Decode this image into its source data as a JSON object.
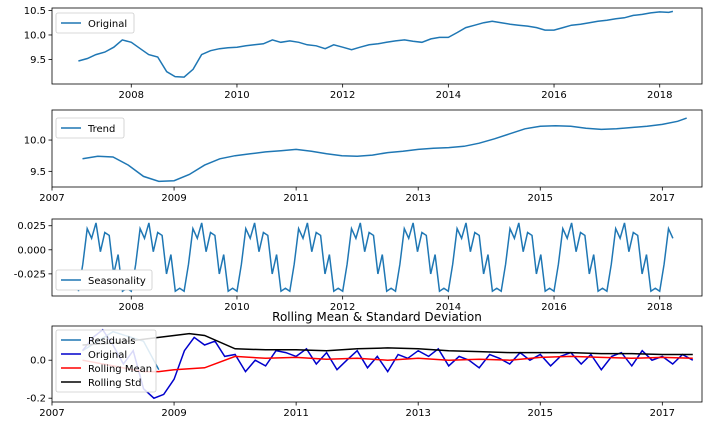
{
  "chart_data": [
    {
      "type": "line",
      "xlim": [
        2006.5,
        2018.8
      ],
      "ylim": [
        9.0,
        10.55
      ],
      "xticks": [
        2008,
        2010,
        2012,
        2014,
        2016,
        2018
      ],
      "xtick_labels": [
        "2008",
        "2010",
        "2012",
        "2014",
        "2016",
        "2018"
      ],
      "yticks": [
        9.5,
        10.0,
        10.5
      ],
      "ytick_labels": [
        "9.5",
        "10.0",
        "10.5"
      ],
      "legend": "upper-left",
      "series": [
        {
          "name": "Original",
          "color": "#1f77b4",
          "x": [
            2007.0,
            2007.17,
            2007.33,
            2007.5,
            2007.67,
            2007.83,
            2008.0,
            2008.17,
            2008.33,
            2008.5,
            2008.67,
            2008.83,
            2009.0,
            2009.17,
            2009.33,
            2009.5,
            2009.67,
            2009.83,
            2010.0,
            2010.17,
            2010.33,
            2010.5,
            2010.67,
            2010.83,
            2011.0,
            2011.17,
            2011.33,
            2011.5,
            2011.67,
            2011.83,
            2012.0,
            2012.17,
            2012.33,
            2012.5,
            2012.67,
            2012.83,
            2013.0,
            2013.17,
            2013.33,
            2013.5,
            2013.67,
            2013.83,
            2014.0,
            2014.17,
            2014.33,
            2014.5,
            2014.67,
            2014.83,
            2015.0,
            2015.17,
            2015.33,
            2015.5,
            2015.67,
            2015.83,
            2016.0,
            2016.17,
            2016.33,
            2016.5,
            2016.67,
            2016.83,
            2017.0,
            2017.17,
            2017.33,
            2017.5,
            2017.67,
            2017.83,
            2018.0,
            2018.17,
            2018.25
          ],
          "y": [
            9.47,
            9.52,
            9.6,
            9.65,
            9.75,
            9.9,
            9.85,
            9.72,
            9.6,
            9.55,
            9.25,
            9.15,
            9.14,
            9.3,
            9.6,
            9.68,
            9.72,
            9.74,
            9.75,
            9.78,
            9.8,
            9.82,
            9.9,
            9.85,
            9.88,
            9.85,
            9.8,
            9.78,
            9.72,
            9.8,
            9.75,
            9.7,
            9.75,
            9.8,
            9.82,
            9.85,
            9.88,
            9.9,
            9.87,
            9.85,
            9.92,
            9.95,
            9.95,
            10.05,
            10.15,
            10.2,
            10.25,
            10.28,
            10.25,
            10.22,
            10.2,
            10.18,
            10.15,
            10.1,
            10.1,
            10.15,
            10.2,
            10.22,
            10.25,
            10.28,
            10.3,
            10.33,
            10.35,
            10.4,
            10.42,
            10.45,
            10.47,
            10.46,
            10.48
          ]
        }
      ]
    },
    {
      "type": "line",
      "xlim": [
        2007.0,
        2017.65
      ],
      "ylim": [
        9.25,
        10.48
      ],
      "xticks": [
        2007,
        2009,
        2011,
        2013,
        2015,
        2017
      ],
      "xtick_labels": [
        "2007",
        "2009",
        "2011",
        "2013",
        "2015",
        "2017"
      ],
      "yticks": [
        9.5,
        10.0
      ],
      "ytick_labels": [
        "9.5",
        "10.0"
      ],
      "legend": "upper-left",
      "series": [
        {
          "name": "Trend",
          "color": "#1f77b4",
          "x": [
            2007.5,
            2007.75,
            2008.0,
            2008.25,
            2008.5,
            2008.75,
            2009.0,
            2009.25,
            2009.5,
            2009.75,
            2010.0,
            2010.25,
            2010.5,
            2010.75,
            2011.0,
            2011.25,
            2011.5,
            2011.75,
            2012.0,
            2012.25,
            2012.5,
            2012.75,
            2013.0,
            2013.25,
            2013.5,
            2013.75,
            2014.0,
            2014.25,
            2014.5,
            2014.75,
            2015.0,
            2015.25,
            2015.5,
            2015.75,
            2016.0,
            2016.25,
            2016.5,
            2016.75,
            2017.0,
            2017.25,
            2017.4
          ],
          "y": [
            9.7,
            9.74,
            9.73,
            9.6,
            9.42,
            9.34,
            9.35,
            9.45,
            9.6,
            9.7,
            9.75,
            9.78,
            9.81,
            9.83,
            9.85,
            9.82,
            9.78,
            9.75,
            9.74,
            9.76,
            9.8,
            9.82,
            9.85,
            9.87,
            9.88,
            9.9,
            9.95,
            10.02,
            10.1,
            10.18,
            10.22,
            10.23,
            10.22,
            10.19,
            10.17,
            10.18,
            10.2,
            10.22,
            10.25,
            10.3,
            10.35
          ]
        }
      ]
    },
    {
      "type": "line",
      "xlim": [
        2006.5,
        2018.8
      ],
      "ylim": [
        -0.048,
        0.032
      ],
      "xticks": [
        2008,
        2010,
        2012,
        2014,
        2016,
        2018
      ],
      "xtick_labels": [
        "2008",
        "2010",
        "2012",
        "2014",
        "2016",
        "2018"
      ],
      "yticks": [
        0.025,
        0.0,
        -0.025
      ],
      "ytick_labels": [
        "0.025",
        "0.000",
        "-0.025"
      ],
      "legend": "lower-left",
      "cycle_values": [
        -0.043,
        -0.015,
        0.022,
        0.012,
        0.028,
        -0.002,
        0.018,
        0.015,
        -0.025,
        -0.005,
        -0.043,
        -0.04
      ],
      "cycle_start": 2007.0,
      "cycle_end": 2018.25,
      "series": [
        {
          "name": "Seasonality",
          "color": "#1f77b4"
        }
      ]
    },
    {
      "type": "line",
      "title": "Rolling Mean & Standard Deviation",
      "xlim": [
        2007.0,
        2017.65
      ],
      "ylim": [
        -0.22,
        0.18
      ],
      "xticks": [
        2007,
        2009,
        2011,
        2013,
        2015,
        2017
      ],
      "xtick_labels": [
        "2007",
        "2009",
        "2011",
        "2013",
        "2015",
        "2017"
      ],
      "yticks": [
        0.0,
        -0.2
      ],
      "ytick_labels": [
        "0.0",
        "-0.2"
      ],
      "legend": "upper-left",
      "series": [
        {
          "name": "Residuals",
          "color": "#1f77b4",
          "x": [
            2007.5,
            2008.0,
            2008.5,
            2008.75
          ],
          "y": [
            0.05,
            0.15,
            0.1,
            -0.05
          ]
        },
        {
          "name": "Original",
          "color": "#0000cc",
          "x": [
            2007.5,
            2007.67,
            2007.83,
            2008.0,
            2008.17,
            2008.33,
            2008.5,
            2008.67,
            2008.83,
            2009.0,
            2009.17,
            2009.33,
            2009.5,
            2009.67,
            2009.83,
            2010.0,
            2010.17,
            2010.33,
            2010.5,
            2010.67,
            2010.83,
            2011.0,
            2011.17,
            2011.33,
            2011.5,
            2011.67,
            2011.83,
            2012.0,
            2012.17,
            2012.33,
            2012.5,
            2012.67,
            2012.83,
            2013.0,
            2013.17,
            2013.33,
            2013.5,
            2013.67,
            2013.83,
            2014.0,
            2014.17,
            2014.33,
            2014.5,
            2014.67,
            2014.83,
            2015.0,
            2015.17,
            2015.33,
            2015.5,
            2015.67,
            2015.83,
            2016.0,
            2016.17,
            2016.33,
            2016.5,
            2016.67,
            2016.83,
            2017.0,
            2017.17,
            2017.33,
            2017.5
          ],
          "y": [
            0.05,
            0.12,
            0.16,
            0.08,
            -0.02,
            0.05,
            -0.15,
            -0.2,
            -0.18,
            -0.1,
            0.05,
            0.12,
            0.08,
            0.1,
            0.02,
            0.03,
            -0.06,
            0.0,
            -0.03,
            0.05,
            0.04,
            0.02,
            0.06,
            -0.02,
            0.04,
            -0.05,
            0.0,
            0.05,
            -0.04,
            0.02,
            -0.06,
            0.03,
            0.01,
            0.05,
            0.02,
            0.06,
            -0.03,
            0.02,
            0.0,
            -0.04,
            0.03,
            0.01,
            -0.02,
            0.04,
            0.0,
            0.03,
            -0.03,
            0.02,
            0.04,
            -0.02,
            0.03,
            -0.05,
            0.02,
            0.04,
            -0.03,
            0.05,
            0.0,
            0.02,
            -0.02,
            0.03,
            0.0
          ]
        },
        {
          "name": "Rolling Mean",
          "color": "#ff0000",
          "x": [
            2007.5,
            2008.0,
            2008.5,
            2008.75,
            2009.0,
            2009.5,
            2010.0,
            2010.5,
            2011.0,
            2011.5,
            2012.0,
            2012.5,
            2013.0,
            2013.5,
            2014.0,
            2014.5,
            2015.0,
            2015.5,
            2016.0,
            2016.5,
            2017.0,
            2017.5
          ],
          "y": [
            0.0,
            -0.03,
            -0.06,
            -0.06,
            -0.05,
            -0.04,
            0.02,
            0.01,
            0.015,
            0.005,
            0.01,
            0.0,
            0.01,
            0.0,
            0.005,
            0.0,
            0.015,
            0.02,
            0.015,
            0.01,
            0.015,
            0.01
          ]
        },
        {
          "name": "Rolling Std",
          "color": "#000000",
          "x": [
            2007.5,
            2008.0,
            2008.5,
            2008.75,
            2009.0,
            2009.25,
            2009.5,
            2010.0,
            2010.5,
            2011.0,
            2011.5,
            2012.0,
            2012.5,
            2013.0,
            2013.5,
            2014.0,
            2014.5,
            2015.0,
            2015.5,
            2016.0,
            2016.5,
            2017.0,
            2017.5
          ],
          "y": [
            0.08,
            0.09,
            0.11,
            0.12,
            0.13,
            0.14,
            0.13,
            0.06,
            0.055,
            0.055,
            0.05,
            0.06,
            0.065,
            0.06,
            0.05,
            0.045,
            0.04,
            0.04,
            0.04,
            0.035,
            0.035,
            0.03,
            0.03
          ]
        }
      ]
    }
  ]
}
